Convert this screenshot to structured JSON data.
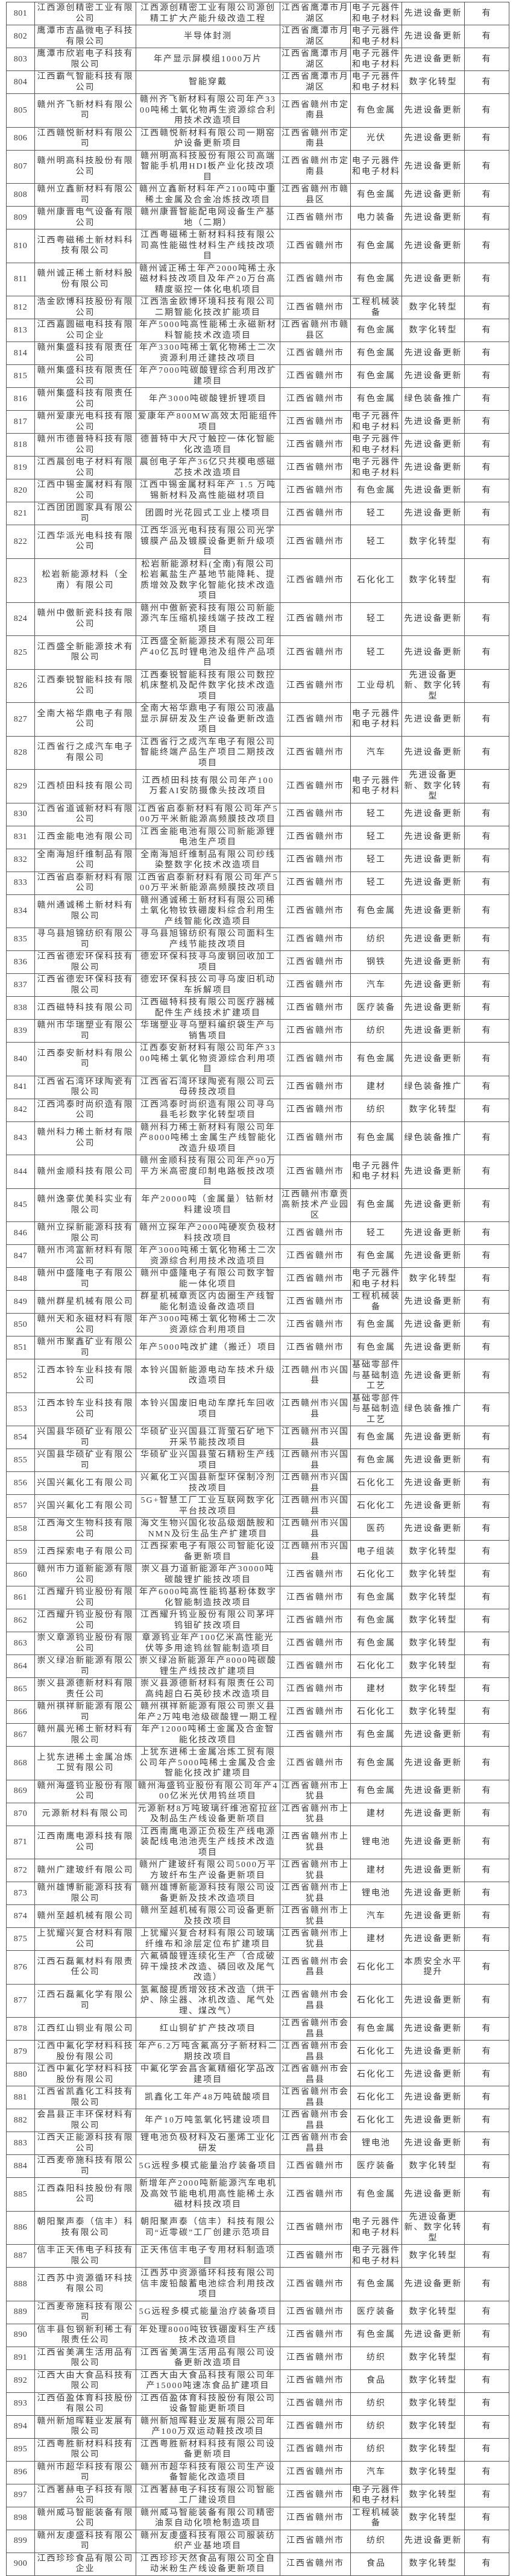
{
  "table": {
    "rows": [
      [
        "801",
        "江西源创精密工业有限公司",
        "江西源创精密工业有限公司源创精工扩大产能升级改造工程",
        "江西省鹰潭市月湖区",
        "电子元器件和电子材料",
        "先进设备更新",
        "有"
      ],
      [
        "802",
        "鹰潭市吉晶微电子科技有限公司",
        "半导体封测",
        "江西省鹰潭市月湖区",
        "电子元器件和电子材料",
        "先进设备更新",
        "有"
      ],
      [
        "803",
        "鹰潭市欣岩电子科技有限公司",
        "年产显示屏模组1000万片",
        "江西省鹰潭市月湖区",
        "电子元器件和电子材料",
        "先进设备更新",
        "有"
      ],
      [
        "804",
        "江西霸气智能科技有限公司",
        "智能穿戴",
        "江西省鹰潭市月湖区",
        "电子元器件和电子材料",
        "数字化转型",
        "有"
      ],
      [
        "805",
        "赣州齐飞新材料有限公司",
        "赣州齐飞新材料有限公司年产3300吨稀土氧化物再生资源综合利用技术改造项目",
        "江西省赣州市定南县",
        "有色金属",
        "先进设备更新",
        "有"
      ],
      [
        "806",
        "江西赣悦新材料有限公司",
        "江西赣悦新材料有限公司一期窑炉设备更新项目",
        "江西省赣州市定南县",
        "光伏",
        "先进设备更新",
        "有"
      ],
      [
        "807",
        "赣州明高科技股份有限公司",
        "赣州明高科技股份有限公司高端智能手机用HDI板产业化技改项目",
        "江西省赣州市定南县",
        "电子元器件和电子材料",
        "先进设备更新",
        "有"
      ],
      [
        "808",
        "赣州立鑫新材料有限公司",
        "赣州立鑫新材料年产2100吨中重稀土金属及合金冶炼技改项目",
        "江西省赣州市赣县区",
        "有色金属",
        "先进设备更新",
        "有"
      ],
      [
        "809",
        "赣州康晋电气设备有限公司",
        "赣州康晋智能配电网设备生产基地（二期）",
        "江西省赣州市",
        "电力装备",
        "先进设备更新",
        "有"
      ],
      [
        "810",
        "江西粤磁稀土新材料科技有限公司",
        "江西粤磁稀土新材料科技有限公司高性能磁性材料生产线技改项目",
        "江西省赣州市",
        "有色金属",
        "先进设备更新",
        "有"
      ],
      [
        "811",
        "赣州诚正稀土新材料股份有限公司",
        "赣州诚正稀土年产2000吨稀土永磁材料技改项目及年产20万台高精度驱控一体化电机项目",
        "江西省赣州市",
        "有色金属",
        "先进设备更新",
        "有"
      ],
      [
        "812",
        "浩金欧博科技股份有限公司",
        "江西浩金欧博环境科技有限公司二期智能化技改扩能项目",
        "江西省赣州市",
        "工程机械装备",
        "数字化转型",
        "有"
      ],
      [
        "813",
        "江西嘉圆磁电科技有限公司企业",
        "年产5000吨高性能稀土永磁新材料智能技术改造项目",
        "江西省赣州市赣县区",
        "有色金属",
        "数字化转型",
        "有"
      ],
      [
        "814",
        "赣州集盛科技有限责任公司",
        "年产3300吨稀土氧化物稀土二次资源利用迁建技改项目",
        "江西省赣州市",
        "有色金属",
        "先进设备更新",
        "有"
      ],
      [
        "815",
        "赣州集盛科技有限责任公司",
        "年产7000吨碳酸锂综合利用改扩建项目",
        "江西省赣州市",
        "有色金属",
        "先进设备更新",
        "有"
      ],
      [
        "816",
        "赣州集盛科技有限责任公司",
        "年产3000吨碳酸锂折锂项目",
        "江西省赣州市",
        "有色金属",
        "绿色装备推广",
        "有"
      ],
      [
        "817",
        "赣州爱康光电科技有限公司",
        "爱康年产800MW高效太阳能组件项目",
        "江西省赣州市",
        "电子元器件和电子材料",
        "先进设备更新",
        "有"
      ],
      [
        "818",
        "赣州市德普特科技有限公司",
        "德普特中大尺寸触控一体化智能化改造项目",
        "江西省赣州市",
        "电子元器件和电子材料",
        "先进设备更新",
        "有"
      ],
      [
        "819",
        "江西晨创电子材料有限公司",
        "晨创电子年产36亿只共模电感磁芯技术改造项目",
        "江西省赣州市",
        "电子元器件和电子材料",
        "先进设备更新",
        "有"
      ],
      [
        "820",
        "江西中锡金属材料有限公司",
        "江西中锡金属材料年产 1.5 万吨锡新材料及高性能磁材项目",
        "江西省赣州市",
        "有色金属",
        "先进设备更新",
        "有"
      ],
      [
        "821",
        "江西团团圆家具有限公司",
        "团圆时光花园式工业上楼项目",
        "江西省赣州市",
        "轻工",
        "先进设备更新",
        "有"
      ],
      [
        "822",
        "江西华派光电科技有限公司",
        "江西华派光电科技有限公司光学镀膜产品及镀膜设备更新升级项目",
        "江西省赣州市",
        "轻工",
        "数字化转型",
        "有"
      ],
      [
        "823",
        "松岩新能源材料（全南）有限公司",
        "松岩新能源材料(全南)有限公司松岩氟盐生产基地节能降耗、提质增效及数字化智能化技术改造项目",
        "江西省赣州市",
        "石化化工",
        "数字化转型",
        "有"
      ],
      [
        "824",
        "赣州中傲新瓷科技有限公司",
        "赣州中傲新瓷科技有限公司新能源汽车压缩机接线端子技改工程项目",
        "江西省赣州市",
        "轻工",
        "先进设备更新",
        "有"
      ],
      [
        "825",
        "江西盛全新能源技术有限公司",
        "江西盛全新能源技术有限公司年产40亿瓦时锂电池及组件产品项目",
        "江西省赣州市",
        "轻工",
        "先进设备更新",
        "有"
      ],
      [
        "826",
        "江西秦锐智能科技有限公司",
        "江西秦锐智能科技有限公司数控机床整机及配件数字化技术改造项目",
        "江西省赣州市",
        "工业母机",
        "先进设备更新、数字化转型",
        "有"
      ],
      [
        "827",
        "全南大裕华鼎电子有限公司",
        "全南大裕华鼎电子有限公司液晶显示屏研发及生产设备更新改造项目",
        "江西省赣州市",
        "电子元器件和电子材料",
        "先进设备更新",
        "有"
      ],
      [
        "828",
        "江西省行之成汽车电子有限公司",
        "江西省行之成汽车电子有限公司智能终端产品生产项目二期技改项目",
        "江西省赣州市",
        "汽车",
        "先进设备更新",
        "有"
      ],
      [
        "829",
        "江西桢田科技有限公司",
        "江西桢田科技有限公司年产100万套AI安防摄像头技改项目",
        "江西省赣州市",
        "电子元器件和电子材料",
        "先进设备更新、数字化转型",
        "有"
      ],
      [
        "830",
        "江西省道诚新材料有限公司",
        "江西省启泰新材料有限公司年产500万平米新能源高频膜技改项目",
        "江西省赣州市",
        "轻工",
        "先进设备更新",
        "有"
      ],
      [
        "831",
        "江西金能电池有限公司",
        "江西金能电池有限公司新能源锂电池生产项目",
        "江西省赣州市",
        "轻工",
        "先进设备更新",
        "有"
      ],
      [
        "832",
        "全南海旭纤维制品有限公司",
        "全南海旭纤维制品有限公司纱线染整数字化技术改造项目",
        "江西省赣州市",
        "轻工",
        "先进设备更新",
        "有"
      ],
      [
        "833",
        "江西省启泰新材料有限公司",
        "江西省启泰新材料有限公司年产500万平米新能源高频膜技改项目",
        "江西省赣州市",
        "轻工",
        "先进设备更新",
        "有"
      ],
      [
        "834",
        "赣州通诚稀土新材料有限公司",
        "赣州通诚稀土新材料有限公司稀土氧化物钕铁硼废料综合利用生产线智能化改造项目",
        "江西省赣州市",
        "有色金属",
        "先进设备更新",
        "有"
      ],
      [
        "835",
        "寻乌县旭锦纺织有限公司",
        "寻乌县旭锦纺织有限公司面料生产线节能技改项目",
        "江西省赣州市",
        "纺织",
        "先进设备更新",
        "有"
      ],
      [
        "836",
        "江西省德宏环保科技有限公司",
        "德宏环保科技寻乌废钢回收加工项目",
        "江西省赣州市",
        "钢铁",
        "先进设备更新",
        "有"
      ],
      [
        "837",
        "江西省德宏环保科技有限公司",
        "德宏环保科技公司寻乌废旧机动车拆解项目",
        "江西省赣州市",
        "汽车",
        "先进设备更新",
        "有"
      ],
      [
        "838",
        "江西磁特科技有限公司",
        "江西磁特科技有限公司医疗器械配件生产线技术扩建项目",
        "江西省赣州市",
        "医疗装备",
        "先进设备更新",
        "有"
      ],
      [
        "839",
        "赣州市华瑞塑业有限公司",
        "华瑞塑业寻乌塑料编织袋生产与销售项目",
        "江西省赣州市",
        "纺织",
        "先进设备更新",
        "有"
      ],
      [
        "840",
        "江西泰安新材料有限公司",
        "江西泰安新材料有限公司年产3300吨稀土氧化物资源综合利用项目",
        "江西省赣州市",
        "有色金属",
        "先进设备更新",
        "有"
      ],
      [
        "841",
        "江西省石湾环球陶瓷有限公司",
        "江西省石湾环球陶瓷有限公司云母砖技改项目",
        "江西省赣州市",
        "建材",
        "绿色装备推广",
        "有"
      ],
      [
        "842",
        "江西鸿泰时尚织造有限公司",
        "江西鸿泰时尚织造有限公司寻乌县毛衫数字化转型项目",
        "江西省赣州市",
        "纺织",
        "数字化转型",
        "有"
      ],
      [
        "843",
        "赣州科力稀土新材有限公司",
        "赣州科力稀土新材料有限公司年产8000吨稀土金属生产线智能化改造升级项目",
        "江西省赣州市",
        "有色金属",
        "绿色装备推广",
        "有"
      ],
      [
        "844",
        "赣州金顺科技有限公司",
        "赣州金顺科技有限公司年产90万平方米高密度印制电路板技改项目",
        "江西省赣州市",
        "电子元器件和电子材料",
        "先进设备更新",
        "有"
      ],
      [
        "845",
        "赣州逸豪优美科实业有限公司",
        "年产20000吨（金属量）钴新材料建设项目",
        "江西赣州市章贡高新技术产业园区",
        "有色金属",
        "先进设备更新",
        "有"
      ],
      [
        "846",
        "赣州立探新能源科技有限公司",
        "赣州立探年产2000吨硬炭负极材料技改项目",
        "江西省赣州市",
        "轻工",
        "先进设备更新",
        "有"
      ],
      [
        "847",
        "赣州市鸿富新材料有限公司",
        "年产3000吨稀土氧化物稀土二次资源综合利用技术改造项目",
        "江西省赣州市",
        "有色金属",
        "先进设备更新",
        "有"
      ],
      [
        "848",
        "赣州中盛隆电子有限公司",
        "赣州中盛隆电子有限公司数字智能一体化项目",
        "江西省赣州市",
        "电子元器件和电子材料",
        "数字化转型",
        "有"
      ],
      [
        "849",
        "赣州群星机械有限公司",
        "群星机械章贡区内齿圈生产线智能化制造设备改造项目",
        "江西省赣州市",
        "工程机械装备",
        "先进设备更新",
        "有"
      ],
      [
        "850",
        "赣州天和永磁材料有限公司",
        "年产3000吨稀土氧化物稀土二次资源综合利用项目",
        "江西省赣州市",
        "有色金属",
        "先进设备更新",
        "有"
      ],
      [
        "851",
        "赣州市聚鑫矿业有限公司",
        "年产5000吨改扩建（搬迁）项目",
        "江西省赣州市",
        "有色金属",
        "先进设备更新",
        "有"
      ],
      [
        "852",
        "江西本铃车业科技有限公司",
        "本铃兴国新能源电动车技术升级改造项目",
        "江西赣州市兴国县",
        "基础零部件与基础制造工艺",
        "先进设备更新",
        "有"
      ],
      [
        "853",
        "江西本铃车业科技有限公司",
        "本铃兴国废旧电动车摩托车回收项目",
        "江西赣州市兴国县",
        "基础零部件与基础制造工艺",
        "绿色装备推广",
        "有"
      ],
      [
        "854",
        "兴国县华硕矿业有限公司",
        "华硕矿业兴国县江背萤石矿地下开采节能技改项目",
        "江西赣州市兴国县",
        "有色金属",
        "先进设备更新",
        "有"
      ],
      [
        "855",
        "兴国县华硕矿业有限公司",
        "华硕矿业兴国县萤石精粉生产线项目",
        "江西赣州市兴国县",
        "有色金属",
        "先进设备更新",
        "有"
      ],
      [
        "856",
        "兴国兴氟化工有限公司",
        "兴氟化工兴国县新型环保制冷剂技改项目",
        "江西赣州市兴国县",
        "石化化工",
        "先进设备更新",
        "有"
      ],
      [
        "857",
        "兴国兴氟化工有限公司",
        "5G+智慧工厂工业互联网数字化平台技改项目",
        "江西赣州市兴国县",
        "石化化工",
        "先进设备更新",
        "有"
      ],
      [
        "858",
        "江西海文生物科技有限公司",
        "海文生物兴国化妆品级烟酰胺和NMN及衍生品生产扩建项目",
        "江西赣州市兴国县",
        "医药",
        "先进设备更新",
        "有"
      ],
      [
        "859",
        "江西探索电子有限公司",
        "江西探索电子有限公司智能化设备更新项目",
        "江西赣州市兴国县",
        "电子组装",
        "数字化转型",
        "有"
      ],
      [
        "860",
        "赣州市力道新能源有限公司",
        "崇义县力道新能源年产30000吨碳酸锂扩能技改项目",
        "江西省赣州市",
        "石化化工",
        "数字化转型",
        "有"
      ],
      [
        "861",
        "江西耀升钨业股份有限公司",
        "年产6000吨高性能钨基粉体数字化智能制造技改项目",
        "江西省赣州市",
        "有色金属",
        "数字化转型",
        "有"
      ],
      [
        "862",
        "江西耀升钨业股份有限公司",
        "江西耀升钨业股份有限公司茅坪钨钼矿技改项目",
        "江西省赣州市",
        "有色金属",
        "数字化转型",
        "有"
      ],
      [
        "863",
        "崇义章源钨业股份有限公司",
        "章源钨业年产100亿米高性能光伏等多用途钨丝智能制造项目",
        "江西省赣州市",
        "有色金属",
        "数字化转型",
        "有"
      ],
      [
        "864",
        "崇义绿冶新能源有限公司",
        "崇义绿冶新能源年产8000吨碳酸锂生产线技改扩建项目",
        "江西省赣州市",
        "石化化工",
        "数字化转型",
        "有"
      ],
      [
        "865",
        "崇义县源德新材料有限责任公司",
        "崇义县源德新材料有限责任公司高纯超白石英砂技术改造项目",
        "江西省赣州市",
        "建材",
        "数字化转型",
        "有"
      ],
      [
        "866",
        "赣州祺祥新能源有限公司",
        "赣州祺祥新能源有限公司崇义县年产2万吨电池级碳酸锂一期工程",
        "江西省赣州市",
        "石化化工",
        "数字化转型",
        "有"
      ],
      [
        "867",
        "赣州晨光稀土新材料有限公司",
        "年产12000吨稀土金属及合金智能化技改项目",
        "江西省赣州市",
        "有色金属",
        "先进设备更新",
        "有"
      ],
      [
        "868",
        "上犹东进稀土金属冶炼工贸有限公司",
        "上犹东进稀土金属冶炼工贸有限公司年产5000吨稀土金属及合金智能化技改扩建项目",
        "江西省赣州市",
        "有色金属",
        "先进设备更新",
        "有"
      ],
      [
        "869",
        "赣州海盛钨业股份有限公司",
        "赣州海盛钨业股份有限公司年产400亿米光伏用钨丝项目",
        "江西省赣州市上犹县",
        "有色金属",
        "先进设备更新",
        "有"
      ],
      [
        "870",
        "元源新材料有限公司",
        "元源新材8万吨玻璃纤维池窑拉丝及制品生产线设备更新项目",
        "江西省赣州市上犹县",
        "建材",
        "先进设备更新",
        "有"
      ],
      [
        "871",
        "江西南鹰电源科技有限公司",
        "江西南鹰电源正负极生产线电源装配线电池池壳生产线技术改造项目",
        "江西省赣州市上犹县",
        "锂电池",
        "先进设备更新",
        "有"
      ],
      [
        "872",
        "赣州广建玻纤有限公司",
        "赣州广建玻纤有限公司5000万平方玻纤布生产设备更新项目",
        "江西省赣州市上犹县",
        "建材",
        "先进设备更新",
        "有"
      ],
      [
        "873",
        "赣州雄博新能源科技有限公司",
        "赣州雄博新能源科技有限公司设备更新及技术改造项目",
        "江西省赣州市上犹县",
        "锂电池",
        "先进设备更新",
        "有"
      ],
      [
        "874",
        "赣州至越机械有限公司",
        "赣州至越机械有限公司设备更新及技改项目",
        "江西省赣州市上犹县",
        "汽车",
        "先进设备更新",
        "有"
      ],
      [
        "875",
        "上犹耀兴复合材料有限公司",
        "上犹耀兴复合材料有限公司玻璃纤维布和涂层定位布扩建项目",
        "江西省赣州市上犹县",
        "建材",
        "先进设备更新",
        "有"
      ],
      [
        "876",
        "江西石磊氟材料有限责任公司",
        "六氟磷酸锂连续化生产（合成破碎干燥技术改造、磷回收及尾气改造）",
        "江西省赣州市会昌县",
        "石化化工",
        "本质安全水平提升",
        "有"
      ],
      [
        "877",
        "江西石磊氟化学有限公司",
        "氢氟酸提质增效技术改造（烘干炉、除尘器、冰机改造、尾气处理、煤改气）",
        "江西省赣州市会昌县",
        "石化化工",
        "先进设备更新",
        "有"
      ],
      [
        "878",
        "江西红山铜业有限公司",
        "红山铜矿扩产技改项目",
        "江西省赣州市会昌县",
        "有色金属",
        "先进设备更新",
        "有"
      ],
      [
        "879",
        "江西中氟化学材料科技股份有限公司",
        "年产6.2万吨含氟高分子新材料二期技改项目",
        "江西省赣州市会昌县",
        "石化化工",
        "先进设备更新",
        "有"
      ],
      [
        "880",
        "江西中氟化学材料科技股份有限公司",
        "中氟化学会昌含氟精细化学品改建项目",
        "江西省赣州市会昌县",
        "石化化工",
        "先进设备更新",
        "有"
      ],
      [
        "881",
        "江西省凯鑫化工科技有限公司",
        "凯鑫化工年产48万吨硫酸项目",
        "江西省赣州市会昌县",
        "石化化工",
        "先进设备更新",
        "有"
      ],
      [
        "882",
        "会昌县正丰环保材料有限公司",
        "年产10万吨氢氧化钙建设项目",
        "江西省赣州市会昌县",
        "石化化工",
        "先进设备更新",
        "有"
      ],
      [
        "883",
        "江西天正能源科技有限公司",
        "锂电池负极材料及石墨烯工业化研发",
        "江西省赣州市会昌县",
        "锂电池",
        "先进设备更新",
        "有"
      ],
      [
        "884",
        "江西麦帝施科技有限公司",
        "5G远程多模式能量治疗装备项目",
        "江西省赣州市",
        "医疗装备",
        "数字化转型",
        "有"
      ],
      [
        "885",
        "江西森阳科技股份有限公司",
        "新增年产2000吨新能源汽车电机及高效节能电机用高性能稀土永磁材料技改项目",
        "江西省赣州市",
        "有色金属",
        "先进设备更新",
        "有"
      ],
      [
        "886",
        "朝阳聚声泰（信丰）科技有限公司",
        "朝阳聚声泰（信丰）科技有限公司“近零碳”工厂创建示范项目",
        "江西省赣州市",
        "电子元器件和电子材料",
        "先进设备更新、数字化转型",
        "有"
      ],
      [
        "887",
        "信丰正天伟电子科技有限公司",
        "正天伟信丰电子专用材料制造项目",
        "江西省赣州市",
        "电子元器件和电子材料",
        "数字化转型",
        "有"
      ],
      [
        "888",
        "江西苏中资源循环科技有限公司",
        "江西苏中资源循环科技有限公司信丰废铅酸蓄电池综合利用技改项目",
        "江西省赣州市",
        "有色金属",
        "先进设备更新",
        "有"
      ],
      [
        "889",
        "江西麦帝施科技有限公司",
        "5G远程多模式能量治疗装备项目",
        "江西省赣州市",
        "医疗装备",
        "数字化转型",
        "有"
      ],
      [
        "890",
        "信丰县包钢新利稀土有限责任公司",
        "年处理8000吨钕铁硼废料生产线技术改造项目",
        "江西省赣州市",
        "有色金属",
        "先进设备更新",
        "有"
      ],
      [
        "891",
        "江西省美满生活用品有限公司",
        "江西省美满生活用品有限公司设备更新改造项目",
        "江西省赣州市",
        "纺织",
        "数字化转型",
        "有"
      ],
      [
        "892",
        "江西大由大食品科技有限公司",
        "江西大由大食品科技有限公司年产15000吨速冻食品扩建项目",
        "江西省赣州市",
        "食品",
        "数字化转型",
        "有"
      ],
      [
        "893",
        "江西佰盈体育科技股份有限公司",
        "江西佰盈体育科技股份有限公司设备智能更新项目",
        "江西省赣州市",
        "纺织",
        "数字化转型",
        "有"
      ],
      [
        "894",
        "赣州新旭晖鞋业发展有限公司",
        "赣州新旭晖鞋业发展有限公司年产100万双运动鞋技改项目",
        "江西省赣州市",
        "纺织",
        "数字化转型",
        "有"
      ],
      [
        "895",
        "江西粤胜新材料科技有限公司",
        "江西粤胜新材料科技有限公司设备更新项目",
        "江西省赣州市",
        "纺织",
        "数字化转型",
        "有"
      ],
      [
        "896",
        "赣州市超华科技有限公司",
        "赣州市超华科技有限公司生产设备智能化改造项目",
        "江西省赣州市",
        "汽车",
        "数字化转型",
        "有"
      ],
      [
        "897",
        "江西著赫电子科技有限公司",
        "江西著赫电子科技有限公司智能工厂建设项目",
        "江西省赣州市",
        "电子元器件和电子材料",
        "数字化转型",
        "有"
      ],
      [
        "898",
        "赣州威马智能装备有限公司",
        "赣州威马智能装备有限公司精密油泵自动化喷枪制造项目",
        "江西省赣州市",
        "工程机械装备",
        "数字化转型",
        "有"
      ],
      [
        "899",
        "赣州友虔盛科技有限公司",
        "赣州友虔盛科技有限公司服装纺织产业基地项目",
        "江西省赣州市",
        "纺织",
        "先进设备更新",
        "有"
      ],
      [
        "900",
        "江西珍珍食品有限公司企业",
        "江西珍珍天然食品有限公司全自动米粉生产线设备更新项目",
        "江西省赣州市",
        "食品",
        "数字化转型",
        "有"
      ]
    ]
  }
}
